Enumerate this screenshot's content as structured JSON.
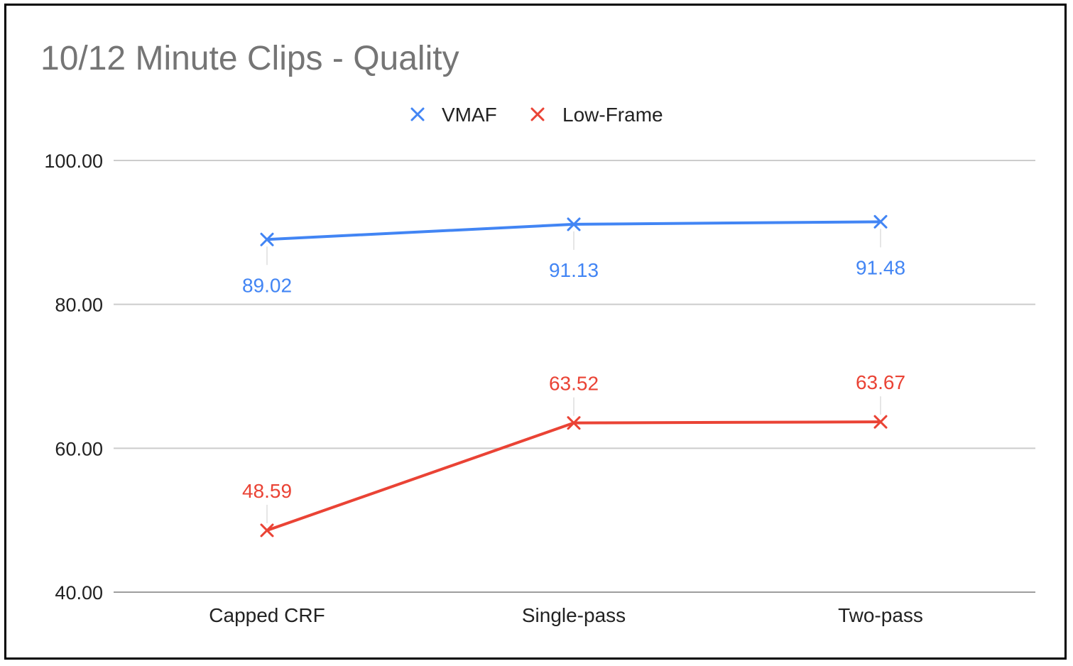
{
  "chart_data": {
    "type": "line",
    "title": "10/12 Minute Clips - Quality",
    "xlabel": "",
    "ylabel": "",
    "categories": [
      "Capped CRF",
      "Single-pass",
      "Two-pass"
    ],
    "y_ticks": [
      "100.00",
      "80.00",
      "60.00",
      "40.00"
    ],
    "ylim": [
      40,
      100
    ],
    "grid": true,
    "legend_position": "top",
    "series": [
      {
        "name": "VMAF",
        "color": "#4285f4",
        "marker": "x",
        "values": [
          89.02,
          91.13,
          91.48
        ],
        "labels": [
          "89.02",
          "91.13",
          "91.48"
        ],
        "label_position": "below"
      },
      {
        "name": "Low-Frame",
        "color": "#ea4335",
        "marker": "x",
        "values": [
          48.59,
          63.52,
          63.67
        ],
        "labels": [
          "48.59",
          "63.52",
          "63.67"
        ],
        "label_position": "above"
      }
    ]
  }
}
